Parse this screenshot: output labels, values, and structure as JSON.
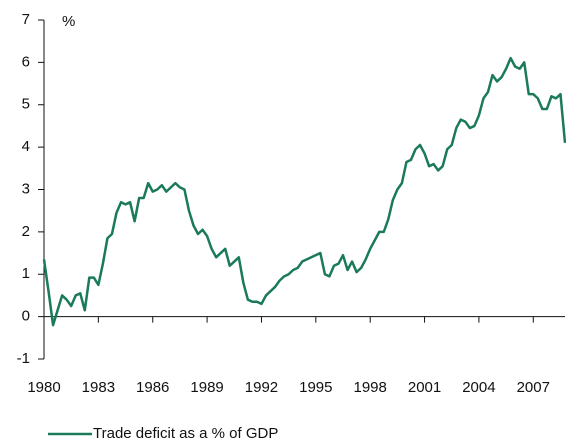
{
  "chart_data": {
    "type": "line",
    "y_label": "%",
    "x": [
      1980,
      1980.25,
      1980.5,
      1980.75,
      1981,
      1981.25,
      1981.5,
      1981.75,
      1982,
      1982.25,
      1982.5,
      1982.75,
      1983,
      1983.25,
      1983.5,
      1983.75,
      1984,
      1984.25,
      1984.5,
      1984.75,
      1985,
      1985.25,
      1985.5,
      1985.75,
      1986,
      1986.25,
      1986.5,
      1986.75,
      1987,
      1987.25,
      1987.5,
      1987.75,
      1988,
      1988.25,
      1988.5,
      1988.75,
      1989,
      1989.25,
      1989.5,
      1989.75,
      1990,
      1990.25,
      1990.5,
      1990.75,
      1991,
      1991.25,
      1991.5,
      1991.75,
      1992,
      1992.25,
      1992.5,
      1992.75,
      1993,
      1993.25,
      1993.5,
      1993.75,
      1994,
      1994.25,
      1994.5,
      1994.75,
      1995,
      1995.25,
      1995.5,
      1995.75,
      1996,
      1996.25,
      1996.5,
      1996.75,
      1997,
      1997.25,
      1997.5,
      1997.75,
      1998,
      1998.25,
      1998.5,
      1998.75,
      1999,
      1999.25,
      1999.5,
      1999.75,
      2000,
      2000.25,
      2000.5,
      2000.75,
      2001,
      2001.25,
      2001.5,
      2001.75,
      2002,
      2002.25,
      2002.5,
      2002.75,
      2003,
      2003.25,
      2003.5,
      2003.75,
      2004,
      2004.25,
      2004.5,
      2004.75,
      2005,
      2005.25,
      2005.5,
      2005.75,
      2006,
      2006.25,
      2006.5,
      2006.75,
      2007,
      2007.25,
      2007.5,
      2007.75,
      2008,
      2008.25,
      2008.5,
      2008.75
    ],
    "series": [
      {
        "name": "Trade deficit as a % of GDP",
        "color": "#1a7a5a",
        "values": [
          1.35,
          0.6,
          -0.2,
          0.15,
          0.5,
          0.4,
          0.25,
          0.5,
          0.55,
          0.15,
          0.92,
          0.92,
          0.75,
          1.25,
          1.85,
          1.95,
          2.45,
          2.7,
          2.65,
          2.7,
          2.25,
          2.8,
          2.8,
          3.15,
          2.95,
          3.0,
          3.1,
          2.95,
          3.05,
          3.15,
          3.05,
          3.0,
          2.5,
          2.15,
          1.95,
          2.05,
          1.9,
          1.6,
          1.4,
          1.5,
          1.6,
          1.2,
          1.3,
          1.4,
          0.8,
          0.4,
          0.35,
          0.35,
          0.3,
          0.5,
          0.6,
          0.7,
          0.85,
          0.95,
          1.0,
          1.1,
          1.15,
          1.3,
          1.35,
          1.4,
          1.45,
          1.5,
          1.0,
          0.95,
          1.2,
          1.25,
          1.45,
          1.1,
          1.3,
          1.05,
          1.15,
          1.35,
          1.6,
          1.8,
          2.0,
          2.0,
          2.3,
          2.75,
          3.0,
          3.15,
          3.65,
          3.7,
          3.95,
          4.05,
          3.85,
          3.55,
          3.6,
          3.45,
          3.55,
          3.95,
          4.05,
          4.45,
          4.65,
          4.6,
          4.45,
          4.5,
          4.75,
          5.15,
          5.3,
          5.7,
          5.55,
          5.65,
          5.85,
          6.1,
          5.9,
          5.85,
          6.0,
          5.25,
          5.25,
          5.15,
          4.9,
          4.9,
          5.2,
          5.15,
          5.25,
          4.1
        ]
      }
    ],
    "xlim": [
      1980,
      2008.75
    ],
    "xticks": [
      1980,
      1983,
      1986,
      1989,
      1992,
      1995,
      1998,
      2001,
      2004,
      2007
    ],
    "ylim": [
      -1,
      7
    ],
    "yticks": [
      -1,
      0,
      1,
      2,
      3,
      4,
      5,
      6,
      7
    ]
  }
}
